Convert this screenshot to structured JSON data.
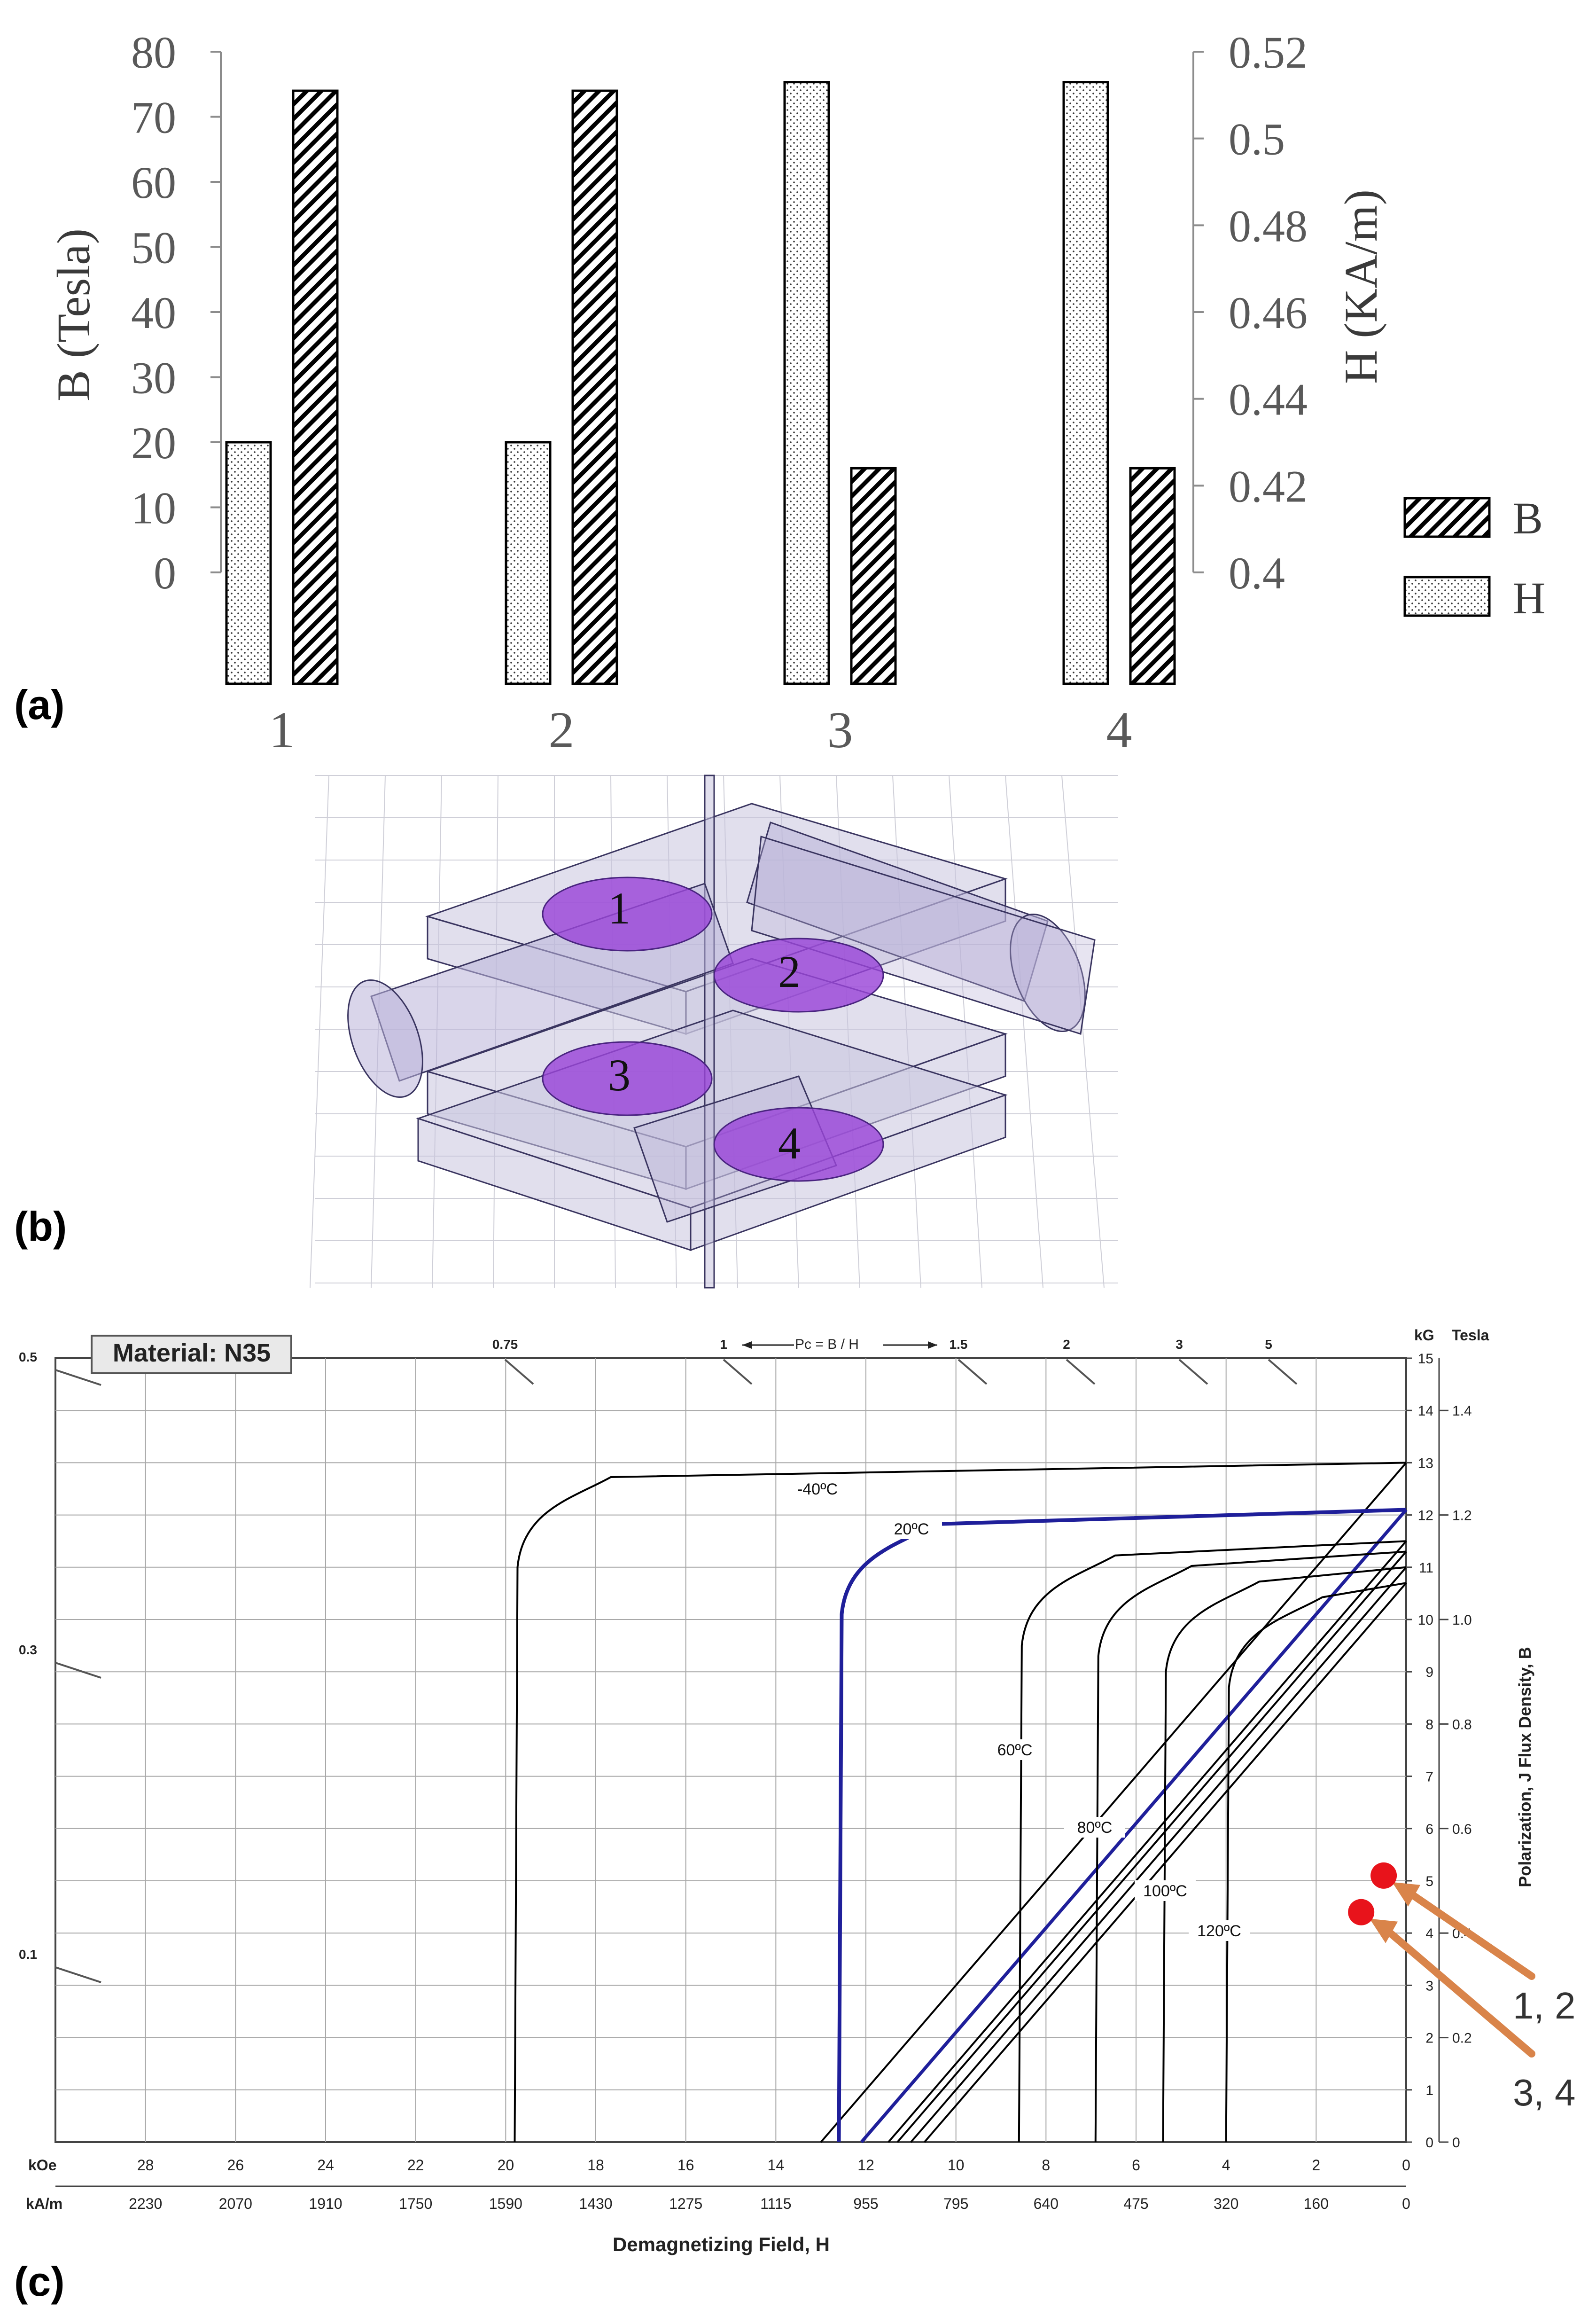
{
  "chart_data": [
    {
      "panel": "(a)",
      "type": "bar",
      "categories": [
        "1",
        "2",
        "3",
        "4"
      ],
      "series": [
        {
          "name": "H",
          "axis": "right",
          "values": [
            0.43,
            0.43,
            0.513,
            0.513
          ]
        },
        {
          "name": "B",
          "axis": "left",
          "values": [
            74,
            74,
            16,
            16
          ]
        }
      ],
      "ylabel_left": "B (Tesla)",
      "ylabel_right": "H (KA/m)",
      "ylim_left": [
        0,
        80
      ],
      "ylim_right": [
        0.4,
        0.52
      ],
      "yticks_left": [
        "0",
        "10",
        "20",
        "30",
        "40",
        "50",
        "60",
        "70",
        "80"
      ],
      "yticks_right": [
        "0.4",
        "0.42",
        "0.44",
        "0.46",
        "0.48",
        "0.5",
        "0.52"
      ],
      "legend": [
        "B",
        "H"
      ],
      "colors": {
        "bar_edge": "#000000",
        "axis": "#595959",
        "text": "#595959"
      }
    },
    {
      "panel": "(c)",
      "type": "line",
      "title_box": "Material: N35",
      "top_scale_label": "Pc = B / H",
      "top_scale_ticks": [
        "0.75",
        "1",
        "1.5",
        "2",
        "3",
        "5"
      ],
      "left_ticks": [
        "0.5",
        "0.3",
        "0.1"
      ],
      "x_kOe_label": "kOe",
      "x_kOe_ticks": [
        "28",
        "26",
        "24",
        "22",
        "20",
        "18",
        "16",
        "14",
        "12",
        "10",
        "8",
        "6",
        "4",
        "2",
        "0"
      ],
      "x_kAm_label": "kA/m",
      "x_kAm_ticks": [
        "2230",
        "2070",
        "1910",
        "1750",
        "1590",
        "1430",
        "1275",
        "1115",
        "955",
        "795",
        "640",
        "475",
        "320",
        "160",
        "0"
      ],
      "xlabel": "Demagnetizing Field, H",
      "xlim_kOe": [
        30,
        0
      ],
      "y_kG_label": "kG",
      "y_tesla_label": "Tesla",
      "y_kG_ticks": [
        "0",
        "1",
        "2",
        "3",
        "4",
        "5",
        "6",
        "7",
        "8",
        "9",
        "10",
        "11",
        "12",
        "13",
        "14",
        "15"
      ],
      "y_tesla_ticks": [
        "0",
        "0.2",
        "0.4",
        "0.6",
        "0.8",
        "1.0",
        "1.2",
        "1.4"
      ],
      "ylim_kG": [
        0,
        15
      ],
      "ylabel": "Polarization,  J    Flux Density, B",
      "curves": [
        {
          "label": "-40ºC",
          "Br_kG": 13.0,
          "Hcj_kOe": 19.8
        },
        {
          "label": "20ºC",
          "Br_kG": 12.1,
          "Hcj_kOe": 12.6
        },
        {
          "label": "60ºC",
          "Br_kG": 11.5,
          "Hcj_kOe": 8.6
        },
        {
          "label": "80ºC",
          "Br_kG": 11.3,
          "Hcj_kOe": 6.9
        },
        {
          "label": "100ºC",
          "Br_kG": 11.0,
          "Hcj_kOe": 5.4
        },
        {
          "label": "120ºC",
          "Br_kG": 10.7,
          "Hcj_kOe": 4.0
        }
      ],
      "markers": [
        {
          "label": "1, 2",
          "H_kOe": 0.5,
          "B_kG": 5.1
        },
        {
          "label": "3, 4",
          "H_kOe": 1.0,
          "B_kG": 4.4
        }
      ],
      "colors": {
        "curve": "#000000",
        "curve_20C": "#1f1f9a",
        "marker": "#e8131b",
        "arrow": "#d9844a",
        "grid": "#a8a8a8"
      }
    }
  ],
  "panel_labels": {
    "a": "(a)",
    "b": "(b)",
    "c": "(c)"
  },
  "panel_b": {
    "magnet_labels": [
      "1",
      "2",
      "3",
      "4"
    ],
    "magnet_color": "#9a45d8"
  }
}
